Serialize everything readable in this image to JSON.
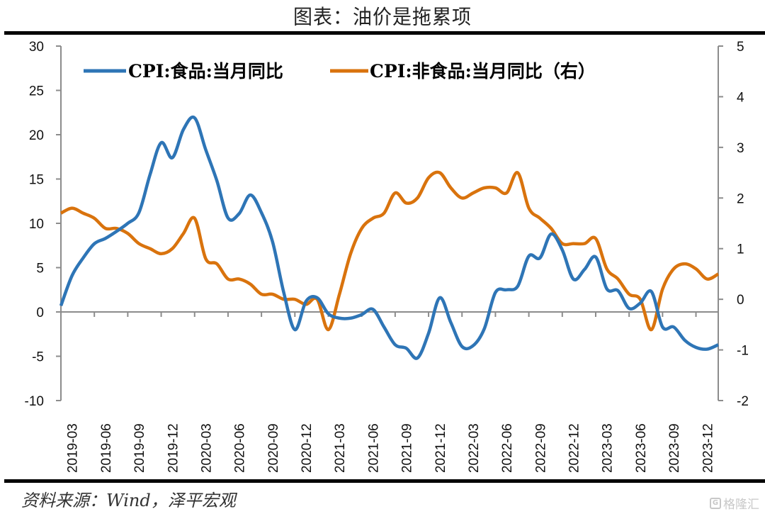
{
  "title": "图表：油价是拖累项",
  "source": "资料来源：Wind，泽平宏观",
  "watermark": "格隆汇",
  "colors": {
    "food": "#2E75B6",
    "nonfood": "#D9730D",
    "axis": "#8c8c8c"
  },
  "chart_data": {
    "type": "line",
    "title": "图表：油价是拖累项",
    "x_start": "2019-02",
    "x_end": "2023-12",
    "x_tick_labels": [
      "2019-03",
      "2019-06",
      "2019-09",
      "2019-12",
      "2020-03",
      "2020-06",
      "2020-09",
      "2020-12",
      "2021-03",
      "2021-06",
      "2021-09",
      "2021-12",
      "2022-03",
      "2022-06",
      "2022-09",
      "2022-12",
      "2023-03",
      "2023-06",
      "2023-09",
      "2023-12"
    ],
    "y_left": {
      "range": [
        -10,
        30
      ],
      "ticks": [
        "-10",
        "-5",
        "0",
        "5",
        "10",
        "15",
        "20",
        "25",
        "30"
      ]
    },
    "y_right": {
      "range": [
        -2,
        5
      ],
      "ticks": [
        "-2",
        "-1",
        "0",
        "1",
        "2",
        "3",
        "4",
        "5"
      ]
    },
    "legend_position": "top",
    "series": [
      {
        "name": "CPI:食品:当月同比",
        "axis": "left",
        "values": [
          0.7,
          4.1,
          6.1,
          7.7,
          8.3,
          9.1,
          10.0,
          11.2,
          15.5,
          19.1,
          17.4,
          20.6,
          21.9,
          18.3,
          14.8,
          10.6,
          11.1,
          13.2,
          11.2,
          7.9,
          2.2,
          -2.0,
          1.2,
          1.6,
          -0.2,
          -0.7,
          -0.7,
          -0.3,
          0.3,
          -1.7,
          -3.7,
          -4.1,
          -5.2,
          -2.4,
          1.6,
          -1.2,
          -3.9,
          -3.8,
          -1.9,
          2.2,
          2.5,
          2.9,
          6.3,
          6.1,
          8.8,
          7.0,
          3.7,
          4.8,
          6.2,
          2.6,
          2.4,
          0.4,
          1.0,
          2.3,
          -1.7,
          -1.7,
          -3.2,
          -4.0,
          -4.2,
          -3.7
        ]
      },
      {
        "name": "CPI:非食品:当月同比（右）",
        "axis": "right",
        "values": [
          1.7,
          1.8,
          1.7,
          1.6,
          1.4,
          1.4,
          1.3,
          1.1,
          1.0,
          0.9,
          1.0,
          1.3,
          1.6,
          0.8,
          0.7,
          0.4,
          0.4,
          0.3,
          0.1,
          0.1,
          0.0,
          0.0,
          -0.1,
          0.0,
          -0.6,
          0.1,
          0.9,
          1.4,
          1.6,
          1.7,
          2.1,
          1.9,
          2.0,
          2.4,
          2.5,
          2.2,
          2.0,
          2.1,
          2.2,
          2.2,
          2.1,
          2.5,
          1.8,
          1.6,
          1.4,
          1.1,
          1.1,
          1.1,
          1.2,
          0.6,
          0.4,
          0.1,
          0.0,
          -0.6,
          0.2,
          0.6,
          0.7,
          0.6,
          0.4,
          0.5
        ]
      }
    ]
  }
}
